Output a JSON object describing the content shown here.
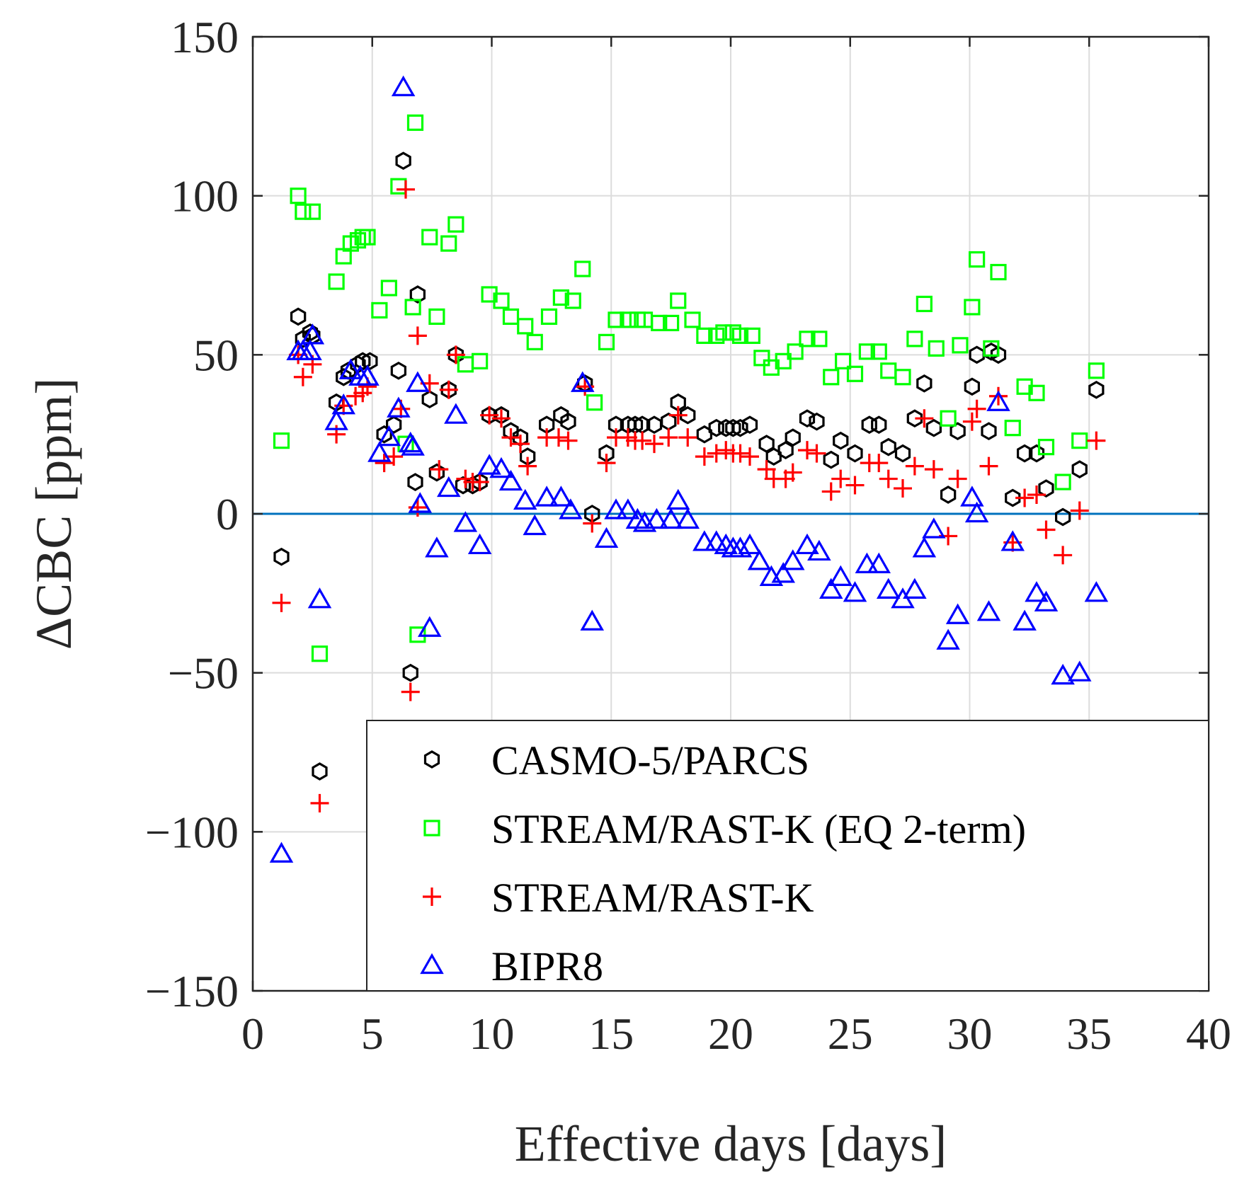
{
  "chart_data": {
    "type": "scatter",
    "xlabel": "Effective days [days]",
    "ylabel": "ΔCBC [ppm]",
    "xlim": [
      0,
      40
    ],
    "ylim": [
      -150,
      150
    ],
    "xticks": [
      0,
      5,
      10,
      15,
      20,
      25,
      30,
      35,
      40
    ],
    "yticks": [
      -150,
      -100,
      -50,
      0,
      50,
      100,
      150
    ],
    "xtick_labels": [
      "0",
      "5",
      "10",
      "15",
      "20",
      "25",
      "30",
      "35",
      "40"
    ],
    "ytick_labels": [
      "−150",
      "−100",
      "−50",
      "0",
      "50",
      "100",
      "150"
    ],
    "grid": true,
    "reference_line": {
      "y": 0,
      "color": "#0072BD"
    },
    "legend_position": "bottom-right",
    "series": [
      {
        "name": "CASMO-5/PARCS",
        "marker": "hexagon",
        "color": "#000000",
        "points": [
          [
            1.2,
            -13.5
          ],
          [
            1.9,
            62
          ],
          [
            2.1,
            55
          ],
          [
            2.4,
            57
          ],
          [
            2.5,
            56
          ],
          [
            2.8,
            -81
          ],
          [
            3.5,
            35
          ],
          [
            3.8,
            43
          ],
          [
            4.0,
            45
          ],
          [
            4.4,
            47
          ],
          [
            4.6,
            48
          ],
          [
            4.9,
            48
          ],
          [
            5.5,
            25
          ],
          [
            5.9,
            28
          ],
          [
            6.1,
            45
          ],
          [
            6.3,
            111
          ],
          [
            6.6,
            -50
          ],
          [
            6.8,
            10
          ],
          [
            6.9,
            69
          ],
          [
            7.4,
            36
          ],
          [
            7.7,
            13
          ],
          [
            8.2,
            39
          ],
          [
            8.5,
            50
          ],
          [
            8.8,
            9
          ],
          [
            9.2,
            9
          ],
          [
            9.5,
            10
          ],
          [
            9.9,
            31
          ],
          [
            10.4,
            31
          ],
          [
            10.8,
            26
          ],
          [
            11.2,
            24
          ],
          [
            11.5,
            18
          ],
          [
            12.3,
            28
          ],
          [
            12.9,
            31
          ],
          [
            13.2,
            29
          ],
          [
            13.9,
            41
          ],
          [
            14.2,
            0
          ],
          [
            14.8,
            19
          ],
          [
            15.2,
            28
          ],
          [
            15.7,
            28
          ],
          [
            16.0,
            28
          ],
          [
            16.3,
            28
          ],
          [
            16.8,
            28
          ],
          [
            17.4,
            29
          ],
          [
            17.8,
            35
          ],
          [
            18.2,
            31
          ],
          [
            18.9,
            25
          ],
          [
            19.4,
            27
          ],
          [
            19.8,
            27
          ],
          [
            20.1,
            27
          ],
          [
            20.4,
            27
          ],
          [
            20.8,
            28
          ],
          [
            21.5,
            22
          ],
          [
            21.8,
            18
          ],
          [
            22.3,
            20
          ],
          [
            22.6,
            24
          ],
          [
            23.2,
            30
          ],
          [
            23.6,
            29
          ],
          [
            24.2,
            17
          ],
          [
            24.6,
            23
          ],
          [
            25.2,
            19
          ],
          [
            25.8,
            28
          ],
          [
            26.2,
            28
          ],
          [
            26.6,
            21
          ],
          [
            27.2,
            19
          ],
          [
            27.7,
            30
          ],
          [
            28.1,
            41
          ],
          [
            28.5,
            27
          ],
          [
            29.1,
            6
          ],
          [
            29.5,
            26
          ],
          [
            30.1,
            40
          ],
          [
            30.3,
            50
          ],
          [
            30.8,
            26
          ],
          [
            30.9,
            51
          ],
          [
            31.2,
            50
          ],
          [
            31.8,
            5
          ],
          [
            32.3,
            19
          ],
          [
            32.8,
            19
          ],
          [
            33.2,
            8
          ],
          [
            33.9,
            -1
          ],
          [
            34.6,
            14
          ],
          [
            35.3,
            39
          ]
        ]
      },
      {
        "name": "STREAM/RAST-K (EQ 2-term)",
        "marker": "square",
        "color": "#00FF00",
        "points": [
          [
            1.2,
            23
          ],
          [
            1.9,
            100
          ],
          [
            2.1,
            95
          ],
          [
            2.5,
            95
          ],
          [
            2.8,
            -44
          ],
          [
            3.5,
            73
          ],
          [
            3.8,
            81
          ],
          [
            4.1,
            85
          ],
          [
            4.4,
            86
          ],
          [
            4.6,
            87
          ],
          [
            4.8,
            87
          ],
          [
            5.3,
            64
          ],
          [
            5.7,
            71
          ],
          [
            6.1,
            103
          ],
          [
            6.4,
            22
          ],
          [
            6.7,
            65
          ],
          [
            6.8,
            123
          ],
          [
            6.9,
            -38
          ],
          [
            7.4,
            87
          ],
          [
            7.7,
            62
          ],
          [
            8.2,
            85
          ],
          [
            8.5,
            91
          ],
          [
            8.9,
            47
          ],
          [
            9.5,
            48
          ],
          [
            9.9,
            69
          ],
          [
            10.4,
            67
          ],
          [
            10.8,
            62
          ],
          [
            11.4,
            59
          ],
          [
            11.8,
            54
          ],
          [
            12.4,
            62
          ],
          [
            12.9,
            68
          ],
          [
            13.4,
            67
          ],
          [
            13.8,
            77
          ],
          [
            14.3,
            35
          ],
          [
            14.8,
            54
          ],
          [
            15.2,
            61
          ],
          [
            15.7,
            61
          ],
          [
            16.1,
            61
          ],
          [
            16.4,
            61
          ],
          [
            17.0,
            60
          ],
          [
            17.5,
            60
          ],
          [
            17.8,
            67
          ],
          [
            18.4,
            61
          ],
          [
            18.9,
            56
          ],
          [
            19.4,
            56
          ],
          [
            19.7,
            57
          ],
          [
            20.1,
            57
          ],
          [
            20.4,
            56
          ],
          [
            20.9,
            56
          ],
          [
            21.3,
            49
          ],
          [
            21.7,
            46
          ],
          [
            22.2,
            48
          ],
          [
            22.7,
            51
          ],
          [
            23.2,
            55
          ],
          [
            23.7,
            55
          ],
          [
            24.2,
            43
          ],
          [
            24.7,
            48
          ],
          [
            25.2,
            44
          ],
          [
            25.7,
            51
          ],
          [
            26.2,
            51
          ],
          [
            26.6,
            45
          ],
          [
            27.2,
            43
          ],
          [
            27.7,
            55
          ],
          [
            28.1,
            66
          ],
          [
            28.6,
            52
          ],
          [
            29.1,
            30
          ],
          [
            29.6,
            53
          ],
          [
            30.1,
            65
          ],
          [
            30.3,
            80
          ],
          [
            30.9,
            52
          ],
          [
            31.2,
            76
          ],
          [
            31.8,
            27
          ],
          [
            32.3,
            40
          ],
          [
            32.8,
            38
          ],
          [
            33.2,
            21
          ],
          [
            33.9,
            10
          ],
          [
            34.6,
            23
          ],
          [
            35.3,
            45
          ]
        ]
      },
      {
        "name": "STREAM/RAST-K",
        "marker": "plus",
        "color": "#FF0000",
        "points": [
          [
            1.2,
            -28
          ],
          [
            1.9,
            50
          ],
          [
            2.1,
            43
          ],
          [
            2.5,
            47
          ],
          [
            2.8,
            -91
          ],
          [
            3.5,
            25
          ],
          [
            3.8,
            34
          ],
          [
            4.3,
            37
          ],
          [
            4.6,
            38
          ],
          [
            4.8,
            40
          ],
          [
            5.5,
            16
          ],
          [
            5.9,
            18
          ],
          [
            6.2,
            33
          ],
          [
            6.4,
            102
          ],
          [
            6.6,
            -56
          ],
          [
            6.9,
            56
          ],
          [
            6.9,
            2
          ],
          [
            7.4,
            41
          ],
          [
            7.8,
            14
          ],
          [
            8.2,
            39
          ],
          [
            8.5,
            50
          ],
          [
            8.9,
            11
          ],
          [
            9.2,
            10
          ],
          [
            9.5,
            10
          ],
          [
            9.9,
            31
          ],
          [
            10.4,
            30
          ],
          [
            10.8,
            24
          ],
          [
            11.2,
            22
          ],
          [
            11.5,
            15
          ],
          [
            12.3,
            24
          ],
          [
            12.8,
            24
          ],
          [
            13.2,
            23
          ],
          [
            13.9,
            40
          ],
          [
            14.2,
            -3
          ],
          [
            14.8,
            16
          ],
          [
            15.2,
            24
          ],
          [
            15.7,
            24
          ],
          [
            16.0,
            23
          ],
          [
            16.3,
            23
          ],
          [
            16.8,
            22
          ],
          [
            17.4,
            24
          ],
          [
            17.8,
            31
          ],
          [
            18.2,
            24
          ],
          [
            18.9,
            18
          ],
          [
            19.4,
            19
          ],
          [
            19.8,
            20
          ],
          [
            20.1,
            19
          ],
          [
            20.4,
            19
          ],
          [
            20.8,
            18
          ],
          [
            21.5,
            14
          ],
          [
            21.8,
            11
          ],
          [
            22.3,
            11
          ],
          [
            22.6,
            13
          ],
          [
            23.2,
            20
          ],
          [
            23.6,
            19
          ],
          [
            24.2,
            7
          ],
          [
            24.6,
            11
          ],
          [
            25.2,
            9
          ],
          [
            25.8,
            16
          ],
          [
            26.2,
            16
          ],
          [
            26.6,
            11
          ],
          [
            27.2,
            8
          ],
          [
            27.7,
            15
          ],
          [
            28.1,
            30
          ],
          [
            28.5,
            14
          ],
          [
            29.1,
            -7
          ],
          [
            29.5,
            11
          ],
          [
            30.1,
            29
          ],
          [
            30.3,
            33
          ],
          [
            30.8,
            15
          ],
          [
            31.2,
            37
          ],
          [
            31.8,
            -9
          ],
          [
            32.3,
            5
          ],
          [
            32.8,
            6
          ],
          [
            33.2,
            -5
          ],
          [
            33.9,
            -13
          ],
          [
            34.6,
            1
          ],
          [
            35.3,
            23
          ]
        ]
      },
      {
        "name": "BIPR8",
        "marker": "triangle",
        "color": "#0000FF",
        "points": [
          [
            1.2,
            -107
          ],
          [
            1.9,
            51
          ],
          [
            2.1,
            51
          ],
          [
            2.4,
            51
          ],
          [
            2.5,
            56
          ],
          [
            2.8,
            -27
          ],
          [
            3.5,
            29
          ],
          [
            3.8,
            34
          ],
          [
            4.1,
            45
          ],
          [
            4.5,
            43
          ],
          [
            4.8,
            43
          ],
          [
            5.3,
            19
          ],
          [
            5.7,
            24
          ],
          [
            6.1,
            33
          ],
          [
            6.3,
            134
          ],
          [
            6.6,
            22
          ],
          [
            6.7,
            21
          ],
          [
            6.9,
            41
          ],
          [
            7.0,
            3
          ],
          [
            7.4,
            -36
          ],
          [
            7.7,
            -11
          ],
          [
            8.2,
            8
          ],
          [
            8.5,
            31
          ],
          [
            8.9,
            -3
          ],
          [
            9.5,
            -10
          ],
          [
            9.9,
            15
          ],
          [
            10.4,
            14
          ],
          [
            10.8,
            10
          ],
          [
            11.4,
            4
          ],
          [
            11.8,
            -4
          ],
          [
            12.3,
            5
          ],
          [
            12.9,
            5
          ],
          [
            13.3,
            1
          ],
          [
            13.8,
            41
          ],
          [
            14.2,
            -34
          ],
          [
            14.8,
            -8
          ],
          [
            15.2,
            1
          ],
          [
            15.7,
            1
          ],
          [
            16.1,
            -2
          ],
          [
            16.4,
            -3
          ],
          [
            16.9,
            -2
          ],
          [
            17.5,
            -2
          ],
          [
            17.8,
            4
          ],
          [
            18.2,
            -2
          ],
          [
            18.9,
            -9
          ],
          [
            19.4,
            -9
          ],
          [
            19.8,
            -10
          ],
          [
            20.1,
            -11
          ],
          [
            20.4,
            -11
          ],
          [
            20.8,
            -10
          ],
          [
            21.2,
            -15
          ],
          [
            21.7,
            -20
          ],
          [
            22.2,
            -19
          ],
          [
            22.6,
            -15
          ],
          [
            23.2,
            -10
          ],
          [
            23.7,
            -12
          ],
          [
            24.2,
            -24
          ],
          [
            24.6,
            -20
          ],
          [
            25.2,
            -25
          ],
          [
            25.7,
            -16
          ],
          [
            26.2,
            -16
          ],
          [
            26.6,
            -24
          ],
          [
            27.2,
            -27
          ],
          [
            27.7,
            -24
          ],
          [
            28.1,
            -11
          ],
          [
            28.5,
            -5
          ],
          [
            29.1,
            -40
          ],
          [
            29.5,
            -32
          ],
          [
            30.1,
            5
          ],
          [
            30.3,
            0
          ],
          [
            30.8,
            -31
          ],
          [
            31.2,
            35
          ],
          [
            31.8,
            -9
          ],
          [
            32.3,
            -34
          ],
          [
            32.8,
            -25
          ],
          [
            33.2,
            -28
          ],
          [
            33.9,
            -51
          ],
          [
            34.6,
            -50
          ],
          [
            35.3,
            -25
          ]
        ]
      }
    ]
  }
}
